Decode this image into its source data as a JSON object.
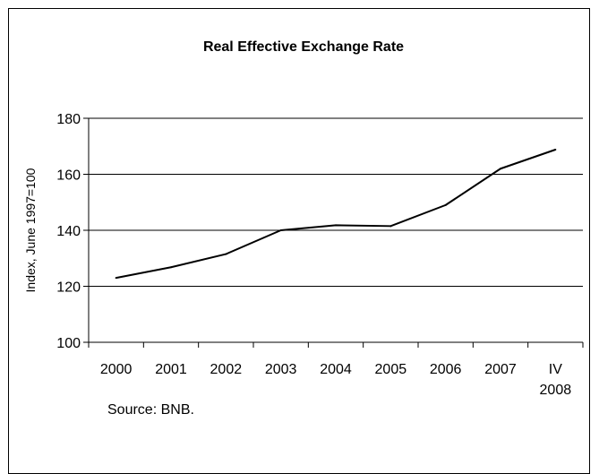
{
  "chart_data": {
    "type": "line",
    "title": "Real Effective Exchange Rate",
    "ylabel": "Index, June 1997=100",
    "xlabel": "",
    "categories": [
      "2000",
      "2001",
      "2002",
      "2003",
      "2004",
      "2005",
      "2006",
      "2007",
      "IV 2008"
    ],
    "category_lines": [
      [
        "2000"
      ],
      [
        "2001"
      ],
      [
        "2002"
      ],
      [
        "2003"
      ],
      [
        "2004"
      ],
      [
        "2005"
      ],
      [
        "2006"
      ],
      [
        "2007"
      ],
      [
        "IV",
        "2008"
      ]
    ],
    "values": [
      123,
      126.8,
      131.5,
      140,
      141.8,
      141.5,
      149,
      162,
      168.8
    ],
    "ylim": [
      100,
      180
    ],
    "yticks": [
      100,
      120,
      140,
      160,
      180
    ],
    "grid": true,
    "line_color": "#000000",
    "source_note": "Source: BNB."
  }
}
